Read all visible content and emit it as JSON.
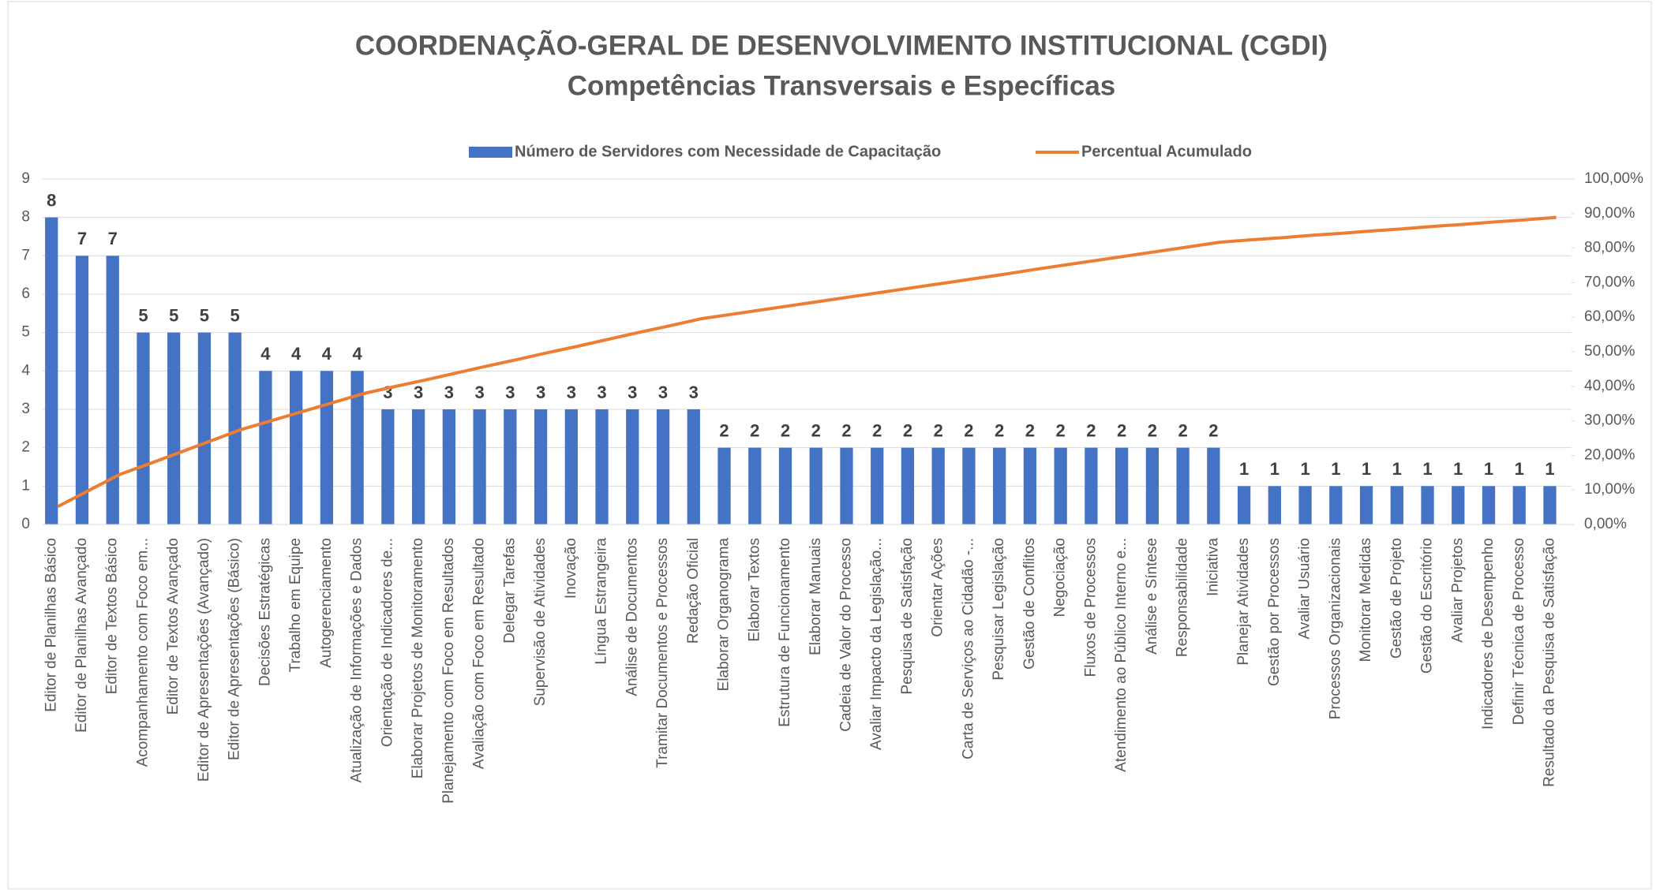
{
  "chart_data": {
    "type": "bar_line",
    "title": "COORDENAÇÃO-GERAL DE DESENVOLVIMENTO INSTITUCIONAL (CGDI)",
    "subtitle": "Competências Transversais e Específicas",
    "categories": [
      "Editor de Planilhas Básico",
      "Editor de Planilhas Avançado",
      "Editor de Textos Básico",
      "Acompanhamento com Foco em...",
      "Editor de Textos Avançado",
      "Editor de Apresentações (Avançado)",
      "Editor de Apresentações (Básico)",
      "Decisões Estratégicas",
      "Trabalho em Equipe",
      "Autogerenciamento",
      "Atualização de Informações e Dados",
      "Orientação de Indicadores de...",
      "Elaborar Projetos de Monitoramento",
      "Planejamento com Foco em Resultados",
      "Avaliação com Foco em Resultado",
      "Delegar Tarefas",
      "Supervisão de Atividades",
      "Inovação",
      "Língua Estrangeira",
      "Análise de Documentos",
      "Tramitar Documentos e Processos",
      "Redação Oficial",
      "Elaborar Organograma",
      "Elaborar Textos",
      "Estrutura de Funcionamento",
      "Elaborar Manuais",
      "Cadeia de Valor do Processo",
      "Avaliar Impacto da Legislação...",
      "Pesquisa de Satisfação",
      "Orientar Ações",
      "Carta de Serviços ao Cidadão -...",
      "Pesquisar Legislação",
      "Gestão de Conflitos",
      "Negociação",
      "Fluxos de Processos",
      "Atendimento ao Público Interno e...",
      "Análise e Síntese",
      "Responsabilidade",
      "Iniciativa",
      "Planejar Atividades",
      "Gestão por Processos",
      "Avaliar Usuário",
      "Processos Organizacionais",
      "Monitorar Medidas",
      "Gestão de Projeto",
      "Gestão do Escritório",
      "Avaliar Projetos",
      "Indicadores de Desempenho",
      "Definir Técnica de Processo",
      "Resultado da Pesquisa de Satisfação"
    ],
    "series": [
      {
        "name": "Número de Servidores com Necessidade de Capacitação",
        "color": "#4472c4",
        "type": "bar",
        "values": [
          8,
          7,
          7,
          5,
          5,
          5,
          5,
          4,
          4,
          4,
          4,
          3,
          3,
          3,
          3,
          3,
          3,
          3,
          3,
          3,
          3,
          3,
          2,
          2,
          2,
          2,
          2,
          2,
          2,
          2,
          2,
          2,
          2,
          2,
          2,
          2,
          2,
          2,
          2,
          1,
          1,
          1,
          1,
          1,
          1,
          1,
          1,
          1,
          1,
          1
        ]
      },
      {
        "name": "Percentual Acumulado",
        "color": "#ed7d31",
        "type": "line",
        "axis": "y2",
        "values": [
          5.2,
          9.8,
          14.4,
          17.6,
          20.9,
          24.2,
          27.5,
          30.1,
          32.7,
          35.3,
          37.9,
          39.9,
          41.8,
          43.8,
          45.8,
          47.7,
          49.7,
          51.6,
          53.6,
          55.6,
          57.5,
          59.5,
          60.8,
          62.1,
          63.4,
          64.7,
          66.0,
          67.3,
          68.6,
          69.9,
          71.2,
          72.5,
          73.9,
          75.2,
          76.5,
          77.8,
          79.1,
          80.4,
          81.7,
          82.4,
          83.0,
          83.7,
          84.3,
          85.0,
          85.6,
          86.3,
          86.9,
          87.6,
          88.2,
          88.9
        ]
      }
    ],
    "ylim": [
      0,
      9
    ],
    "yticks": [
      0,
      1,
      2,
      3,
      4,
      5,
      6,
      7,
      8,
      9
    ],
    "y2lim": [
      0,
      100
    ],
    "y2ticks": [
      {
        "value": 0,
        "label": "0,00%"
      },
      {
        "value": 10,
        "label": "10,00%"
      },
      {
        "value": 20,
        "label": "20,00%"
      },
      {
        "value": 30,
        "label": "30,00%"
      },
      {
        "value": 40,
        "label": "40,00%"
      },
      {
        "value": 50,
        "label": "50,00%"
      },
      {
        "value": 60,
        "label": "60,00%"
      },
      {
        "value": 70,
        "label": "70,00%"
      },
      {
        "value": 80,
        "label": "80,00%"
      },
      {
        "value": 90,
        "label": "90,00%"
      },
      {
        "value": 100,
        "label": "100,00%"
      }
    ],
    "grid": true,
    "legend": "top"
  }
}
